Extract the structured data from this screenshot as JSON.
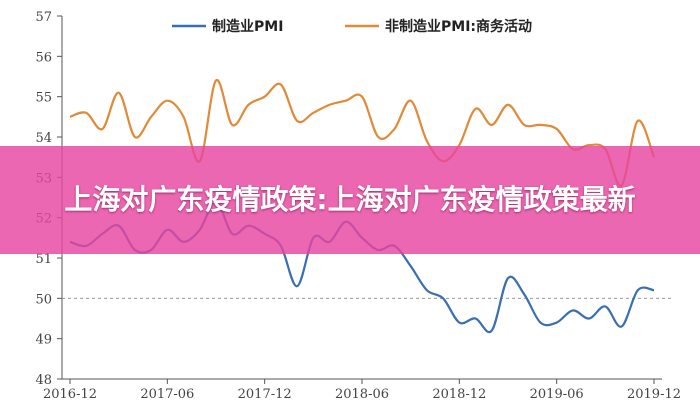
{
  "overlay": {
    "headline": "上海对广东疫情政策:上海对广东疫情政策最新"
  },
  "chart_data": {
    "type": "line",
    "ylim": [
      48,
      57
    ],
    "yticks": [
      48,
      49,
      50,
      51,
      52,
      53,
      54,
      55,
      56,
      57
    ],
    "xticks": [
      "2016-12",
      "2017-06",
      "2017-12",
      "2018-06",
      "2018-12",
      "2019-06",
      "2019-12"
    ],
    "reference_line": {
      "y": 50,
      "style": "dashed",
      "color": "#999999"
    },
    "legend_position": "top",
    "grid": false,
    "series": [
      {
        "name": "制造业PMI",
        "color": "#3a6fb0",
        "x": [
          "2016-12",
          "2017-01",
          "2017-02",
          "2017-03",
          "2017-04",
          "2017-05",
          "2017-06",
          "2017-07",
          "2017-08",
          "2017-09",
          "2017-10",
          "2017-11",
          "2017-12",
          "2018-01",
          "2018-02",
          "2018-03",
          "2018-04",
          "2018-05",
          "2018-06",
          "2018-07",
          "2018-08",
          "2018-09",
          "2018-10",
          "2018-11",
          "2018-12",
          "2019-01",
          "2019-02",
          "2019-03",
          "2019-04",
          "2019-05",
          "2019-06",
          "2019-07",
          "2019-08",
          "2019-09",
          "2019-10",
          "2019-11",
          "2019-12"
        ],
        "values": [
          51.4,
          51.3,
          51.6,
          51.8,
          51.2,
          51.2,
          51.7,
          51.4,
          51.7,
          52.4,
          51.6,
          51.8,
          51.6,
          51.3,
          50.3,
          51.5,
          51.4,
          51.9,
          51.5,
          51.2,
          51.3,
          50.8,
          50.2,
          50.0,
          49.4,
          49.5,
          49.2,
          50.5,
          50.1,
          49.4,
          49.4,
          49.7,
          49.5,
          49.8,
          49.3,
          50.2,
          50.2
        ]
      },
      {
        "name": "非制造业PMI:商务活动",
        "color": "#e08a3a",
        "x": [
          "2016-12",
          "2017-01",
          "2017-02",
          "2017-03",
          "2017-04",
          "2017-05",
          "2017-06",
          "2017-07",
          "2017-08",
          "2017-09",
          "2017-10",
          "2017-11",
          "2017-12",
          "2018-01",
          "2018-02",
          "2018-03",
          "2018-04",
          "2018-05",
          "2018-06",
          "2018-07",
          "2018-08",
          "2018-09",
          "2018-10",
          "2018-11",
          "2018-12",
          "2019-01",
          "2019-02",
          "2019-03",
          "2019-04",
          "2019-05",
          "2019-06",
          "2019-07",
          "2019-08",
          "2019-09",
          "2019-10",
          "2019-11",
          "2019-12"
        ],
        "values": [
          54.5,
          54.6,
          54.2,
          55.1,
          54.0,
          54.5,
          54.9,
          54.5,
          53.4,
          55.4,
          54.3,
          54.8,
          55.0,
          55.3,
          54.4,
          54.6,
          54.8,
          54.9,
          55.0,
          54.0,
          54.2,
          54.9,
          53.9,
          53.4,
          53.8,
          54.7,
          54.3,
          54.8,
          54.3,
          54.3,
          54.2,
          53.7,
          53.8,
          53.7,
          52.8,
          54.4,
          53.5
        ]
      }
    ]
  }
}
